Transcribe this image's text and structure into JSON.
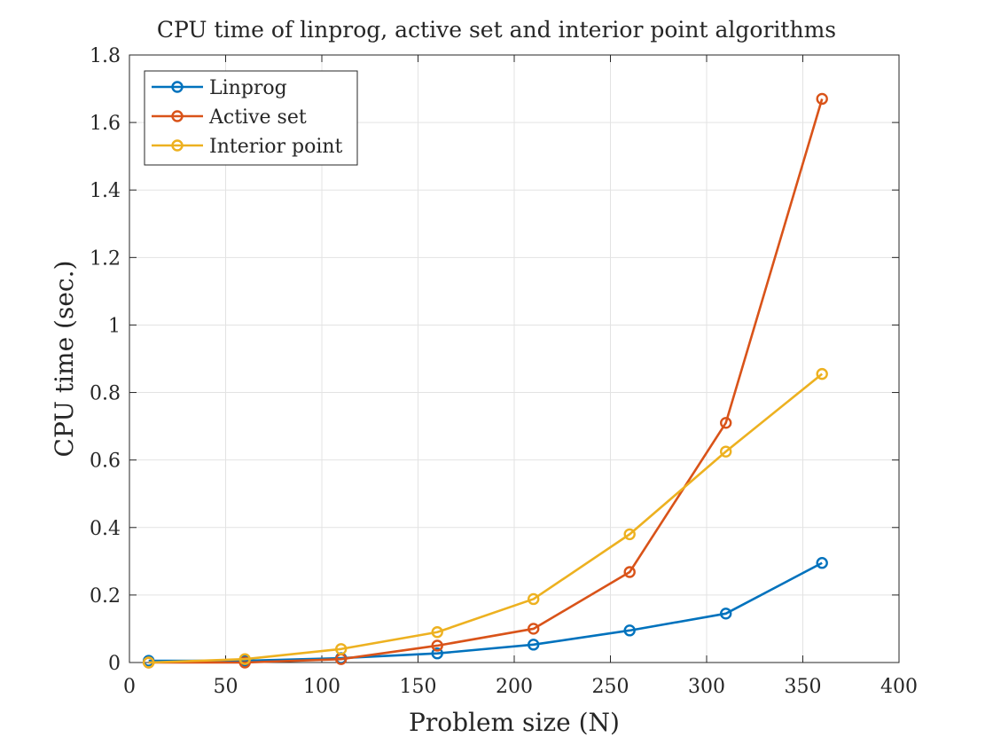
{
  "chart_data": {
    "type": "line",
    "title": "CPU time of linprog, active set and interior point algorithms",
    "xlabel": "Problem size (N)",
    "ylabel": "CPU time (sec.)",
    "xlim": [
      0,
      400
    ],
    "ylim": [
      0,
      1.8
    ],
    "xticks": [
      0,
      50,
      100,
      150,
      200,
      250,
      300,
      350,
      400
    ],
    "yticks": [
      0,
      0.2,
      0.4,
      0.6,
      0.8,
      1,
      1.2,
      1.4,
      1.6,
      1.8
    ],
    "xtick_labels": [
      "0",
      "50",
      "100",
      "150",
      "200",
      "250",
      "300",
      "350",
      "400"
    ],
    "ytick_labels": [
      "0",
      "0.2",
      "0.4",
      "0.6",
      "0.8",
      "1",
      "1.2",
      "1.4",
      "1.6",
      "1.8"
    ],
    "grid": true,
    "legend_position": "top-left",
    "x": [
      10,
      60,
      110,
      160,
      210,
      260,
      310,
      360
    ],
    "series": [
      {
        "name": "Linprog",
        "color": "#0072BD",
        "marker": "circle",
        "values": [
          0.005,
          0.005,
          0.013,
          0.027,
          0.053,
          0.095,
          0.145,
          0.295
        ]
      },
      {
        "name": "Active set",
        "color": "#D95319",
        "marker": "circle",
        "values": [
          0.0,
          0.0,
          0.01,
          0.05,
          0.1,
          0.268,
          0.71,
          1.67
        ]
      },
      {
        "name": "Interior point",
        "color": "#EDB120",
        "marker": "circle",
        "values": [
          0.0,
          0.01,
          0.04,
          0.09,
          0.188,
          0.38,
          0.625,
          0.855
        ]
      }
    ]
  }
}
